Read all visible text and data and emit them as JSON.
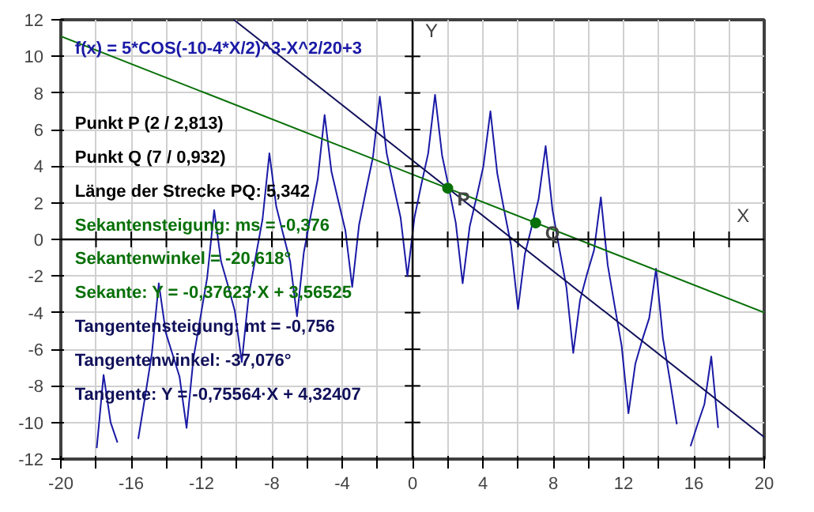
{
  "chart_data": {
    "type": "line",
    "xlim": [
      -20,
      20
    ],
    "ylim": [
      -12,
      12
    ],
    "xticks": [
      -20,
      {
        "value": -18,
        "label": null
      },
      -16,
      {
        "value": -14,
        "label": null
      },
      -12,
      {
        "value": -10,
        "label": null
      },
      -8,
      {
        "value": -6,
        "label": null
      },
      -4,
      {
        "value": -2,
        "label": null
      },
      0,
      {
        "value": 2,
        "label": null
      },
      4,
      {
        "value": 6,
        "label": null
      },
      8,
      {
        "value": 10,
        "label": null
      },
      12,
      {
        "value": 14,
        "label": null
      },
      16,
      {
        "value": 18,
        "label": null
      },
      20
    ],
    "yticks": [
      -12,
      -10,
      -8,
      -6,
      -4,
      -2,
      0,
      2,
      4,
      6,
      8,
      10,
      12
    ],
    "xlabel": "X",
    "ylabel": "Y",
    "grid": true,
    "legend": false,
    "marker": "none",
    "line_style": "solid",
    "series": [
      {
        "name": "f(x) = 5*COS(-10-4*X/2)^3-X^2/20+3",
        "color": "#1a1aa6",
        "x": [
          -17.96,
          -17.57,
          -17.17,
          -16.78,
          -16.39,
          -16.0,
          -15.6,
          -15.21,
          -14.82,
          -14.43,
          -14.03,
          -13.64,
          -13.25,
          -12.85,
          -12.46,
          -12.07,
          -11.68,
          -11.28,
          -10.89,
          -10.5,
          -10.11,
          -9.71,
          -9.32,
          -8.93,
          -8.53,
          -8.14,
          -7.75,
          -7.36,
          -6.96,
          -6.57,
          -6.18,
          -5.79,
          -5.39,
          -5.0,
          -4.61,
          -4.22,
          -3.82,
          -3.43,
          -3.04,
          -2.64,
          -2.25,
          -1.86,
          -1.47,
          -1.07,
          -0.68,
          -0.29,
          0.11,
          0.5,
          0.89,
          1.28,
          1.68,
          2.07,
          2.46,
          2.85,
          3.25,
          3.64,
          4.03,
          4.43,
          4.82,
          5.21,
          5.6,
          6.0,
          6.39,
          6.78,
          7.17,
          7.57,
          7.96,
          8.35,
          8.75,
          9.14,
          9.53,
          9.92,
          10.32,
          10.71,
          11.1,
          11.49,
          11.89,
          12.28,
          12.67,
          13.06,
          13.46,
          13.85,
          14.24,
          14.64,
          15.03,
          15.42,
          15.81,
          16.21,
          16.6,
          16.99,
          17.38
        ],
        "values": [
          -11.4,
          -7.4,
          -10.0,
          -11.1,
          null,
          null,
          -10.9,
          -8.6,
          -6.2,
          -2.4,
          -5.1,
          -6.3,
          -7.5,
          -10.3,
          -6.5,
          -4.3,
          -2.1,
          1.6,
          -1.2,
          -2.5,
          -3.9,
          -6.7,
          -3.1,
          -1.0,
          1.1,
          4.7,
          1.8,
          0.3,
          -1.2,
          -4.2,
          -0.7,
          1.3,
          3.3,
          6.8,
          3.7,
          2.1,
          0.5,
          -2.6,
          0.8,
          2.7,
          4.5,
          7.8,
          4.7,
          2.9,
          1.2,
          -2.0,
          1.2,
          3.0,
          4.7,
          7.9,
          4.6,
          2.8,
          0.9,
          -2.4,
          0.7,
          2.3,
          4.0,
          7.0,
          3.6,
          1.6,
          -0.3,
          -3.8,
          -0.8,
          0.7,
          2.2,
          5.1,
          1.6,
          -0.5,
          -2.6,
          -6.2,
          -3.3,
          -1.9,
          -0.6,
          2.3,
          -1.4,
          -3.6,
          -5.8,
          -9.5,
          -6.8,
          -5.5,
          -4.3,
          -1.6,
          -5.4,
          -7.7,
          -10.1,
          null,
          -11.3,
          -10.1,
          -9.0,
          -6.4,
          -10.3
        ]
      },
      {
        "name": "Sekante: Y = -0,37623·X + 3,56525",
        "color": "#087008",
        "x": [
          -20,
          20
        ],
        "values": [
          11.1,
          -4.0
        ]
      },
      {
        "name": "Tangente: Y = -0,75564·X + 4,32407",
        "color": "#10105a",
        "x": [
          -10.16,
          20
        ],
        "values": [
          12,
          -10.8
        ]
      },
      {
        "type": "scatter",
        "marker": "circle",
        "color": "#087008",
        "x": [
          2,
          7
        ],
        "values": [
          2.8,
          0.9
        ]
      }
    ],
    "annotations": [
      "Punkt P (2 / 2,813)",
      "Punkt Q (7 / 0,932)",
      "Länge der Strecke PQ: 5,342",
      "Sekantensteigung: ms = -0,376",
      "Sekantenwinkel = -20,618°",
      "Tangentensteigung: mt = -0,756",
      "Tangentenwinkel: -37,076°",
      {
        "text": "P",
        "x": 2,
        "y": 2.813
      },
      {
        "text": "Q",
        "x": 7,
        "y": 0.932
      }
    ]
  }
}
